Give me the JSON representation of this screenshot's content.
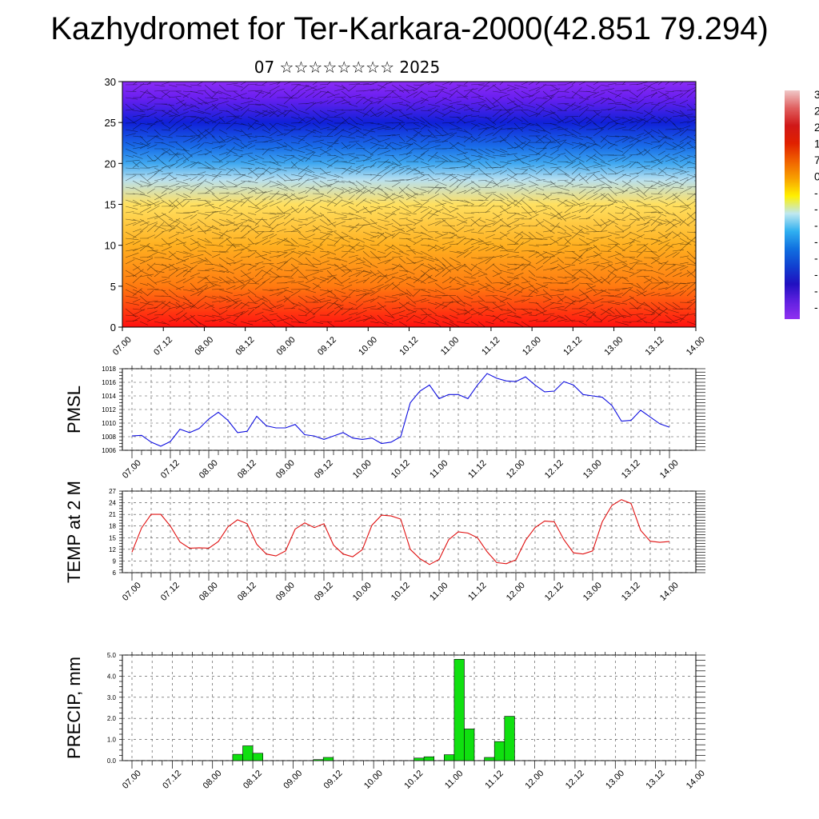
{
  "title": "Kazhydromet for Ter-Karkara-2000(42.851 79.294)",
  "subtitle": "07 ☆☆☆☆☆☆☆☆ 2025",
  "time_ticks": [
    "07.00",
    "07.12",
    "08.00",
    "08.12",
    "09.00",
    "09.12",
    "10.00",
    "10.12",
    "11.00",
    "11.12",
    "12.00",
    "12.12",
    "13.00",
    "13.12",
    "14.00"
  ],
  "colorbar": {
    "visible_labels": [
      "3",
      "2",
      "2",
      "1",
      "7",
      "0",
      "-",
      "-",
      "-",
      "-",
      "-",
      "-",
      "-",
      "-"
    ],
    "colors_top_to_bottom": [
      "#f0c8c8",
      "#e06060",
      "#d01818",
      "#e02000",
      "#f06000",
      "#f8a000",
      "#fff000",
      "#bfe8f0",
      "#30b0f0",
      "#1070e0",
      "#1040d0",
      "#2010c0",
      "#6020e0",
      "#9030f0"
    ]
  },
  "chart_data": [
    {
      "type": "heatmap",
      "description_key": "cross-section",
      "ylim": [
        0,
        30
      ],
      "yticks": [
        "0",
        "5",
        "10",
        "15",
        "20",
        "25",
        "30"
      ],
      "x_ticks_ref": "time_ticks",
      "color_levels_by_height": [
        {
          "y": 0,
          "color": "#ff1010"
        },
        {
          "y": 5,
          "color": "#ff7a10"
        },
        {
          "y": 10,
          "color": "#ffb020"
        },
        {
          "y": 15,
          "color": "#ffe060"
        },
        {
          "y": 18,
          "color": "#b8e0f0"
        },
        {
          "y": 20,
          "color": "#40a8f0"
        },
        {
          "y": 22,
          "color": "#1a6ee8"
        },
        {
          "y": 25,
          "color": "#1020d8"
        },
        {
          "y": 28,
          "color": "#6a1ff0"
        },
        {
          "y": 30,
          "color": "#8a2cf5"
        }
      ]
    },
    {
      "type": "line",
      "ylabel": "PMSL",
      "ylim": [
        1006,
        1018
      ],
      "yticks": [
        "1006",
        "1008",
        "1010",
        "1012",
        "1014",
        "1016",
        "1018"
      ],
      "color": "#1010e0",
      "x_hours": [
        0,
        3,
        6,
        9,
        12,
        15,
        18,
        21,
        24,
        27,
        30,
        33,
        36,
        39,
        42,
        45,
        48,
        51,
        54,
        57,
        60,
        63,
        66,
        69,
        72,
        75,
        78,
        81,
        84,
        87,
        90,
        93,
        96,
        99,
        102,
        105,
        108,
        111,
        114,
        117,
        120,
        123,
        126,
        129,
        132,
        135,
        138,
        141,
        144,
        147,
        150,
        153,
        156,
        159,
        162,
        165,
        168
      ],
      "values": [
        1008.1,
        1008.2,
        1007.2,
        1006.6,
        1007.3,
        1009.1,
        1008.6,
        1009.2,
        1010.6,
        1011.6,
        1010.4,
        1008.6,
        1008.8,
        1011.0,
        1009.6,
        1009.3,
        1009.3,
        1009.8,
        1008.3,
        1008.1,
        1007.6,
        1008.1,
        1008.6,
        1007.8,
        1007.6,
        1007.8,
        1007.0,
        1007.2,
        1008.0,
        1013.0,
        1014.7,
        1015.6,
        1013.6,
        1014.2,
        1014.2,
        1013.6,
        1015.6,
        1017.3,
        1016.6,
        1016.2,
        1016.1,
        1016.8,
        1015.6,
        1014.6,
        1014.7,
        1016.1,
        1015.6,
        1014.2,
        1014.0,
        1013.8,
        1012.6,
        1010.3,
        1010.4,
        1011.9,
        1010.9,
        1009.9,
        1009.4
      ]
    },
    {
      "type": "line",
      "ylabel": "TEMP at 2 M",
      "ylim": [
        6,
        27
      ],
      "yticks": [
        "6",
        "9",
        "12",
        "15",
        "18",
        "21",
        "24",
        "27"
      ],
      "color": "#e01010",
      "x_hours": [
        0,
        3,
        6,
        9,
        12,
        15,
        18,
        21,
        24,
        27,
        30,
        33,
        36,
        39,
        42,
        45,
        48,
        51,
        54,
        57,
        60,
        63,
        66,
        69,
        72,
        75,
        78,
        81,
        84,
        87,
        90,
        93,
        96,
        99,
        102,
        105,
        108,
        111,
        114,
        117,
        120,
        123,
        126,
        129,
        132,
        135,
        138,
        141,
        144,
        147,
        150,
        153,
        156,
        159,
        162,
        165,
        168
      ],
      "values": [
        11.3,
        17.5,
        21.0,
        21.0,
        18.0,
        13.9,
        12.3,
        12.4,
        12.3,
        14.0,
        17.8,
        19.6,
        18.6,
        13.3,
        10.8,
        10.3,
        11.6,
        17.2,
        18.8,
        17.6,
        18.6,
        13.1,
        10.8,
        10.1,
        11.9,
        18.2,
        20.8,
        20.6,
        19.8,
        12.0,
        9.6,
        8.1,
        9.4,
        14.5,
        16.5,
        16.2,
        15.0,
        11.4,
        8.6,
        8.3,
        9.3,
        14.3,
        17.6,
        19.3,
        19.1,
        14.5,
        11.1,
        10.8,
        11.6,
        19.1,
        23.3,
        24.8,
        23.8,
        16.9,
        14.1,
        13.8,
        14.0
      ]
    },
    {
      "type": "bar",
      "ylabel": "PRECIP, mm",
      "ylim": [
        0,
        5
      ],
      "yticks": [
        "0.0",
        "1.0",
        "2.0",
        "3.0",
        "4.0",
        "5.0"
      ],
      "color": "#10e010",
      "x_hours": [
        30,
        33,
        36,
        54,
        57,
        84,
        87,
        93,
        96,
        99,
        105,
        108,
        111
      ],
      "values": [
        0.3,
        0.7,
        0.35,
        0.05,
        0.15,
        0.12,
        0.18,
        0.28,
        4.8,
        1.5,
        0.15,
        0.9,
        2.1
      ]
    }
  ]
}
